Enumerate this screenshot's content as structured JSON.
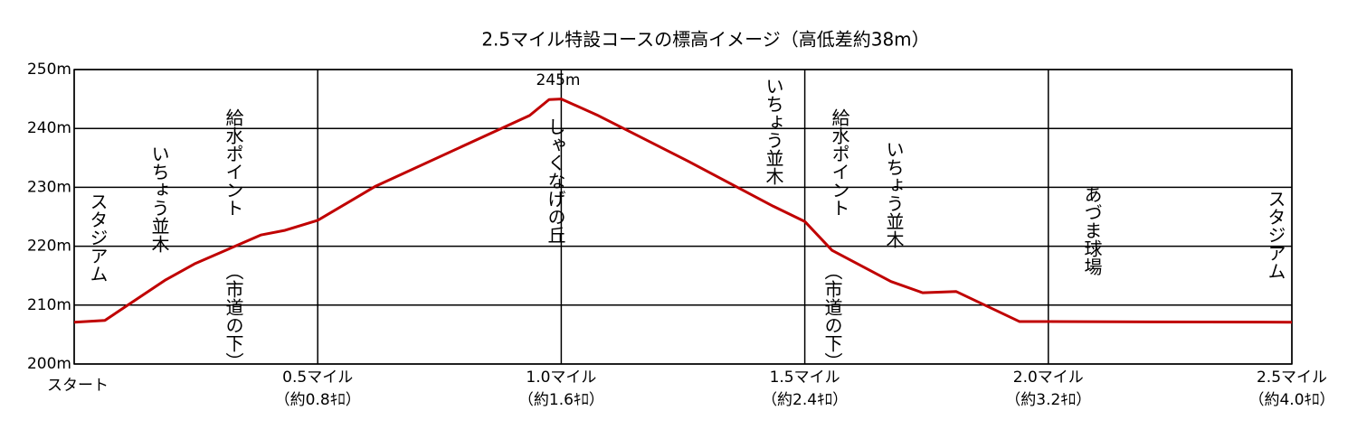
{
  "chart_data": {
    "type": "line",
    "title": "2.5マイル特設コースの標高イメージ（高低差約38m）",
    "x": [
      0,
      0.063,
      0.188,
      0.247,
      0.383,
      0.433,
      0.5,
      0.619,
      0.935,
      0.975,
      1.0,
      1.073,
      1.259,
      1.435,
      1.5,
      1.556,
      1.677,
      1.742,
      1.811,
      1.941,
      2.0,
      2.5
    ],
    "series": [
      {
        "color": "#c00000",
        "values": [
          207.1,
          207.4,
          214.3,
          217.0,
          221.9,
          222.7,
          224.4,
          230.2,
          242.2,
          244.9,
          245,
          242.3,
          234.5,
          226.8,
          224.2,
          219.3,
          214.0,
          212.1,
          212.3,
          207.2,
          207.2,
          207.1
        ]
      }
    ],
    "xlim": [
      0,
      2.5
    ],
    "xticks": [
      {
        "value": 0,
        "label": "スタート"
      },
      {
        "value": 0.5,
        "label": "0.5マイル"
      },
      {
        "value": 1.0,
        "label": "1.0マイル"
      },
      {
        "value": 1.5,
        "label": "1.5マイル"
      },
      {
        "value": 2.0,
        "label": "2.0マイル"
      },
      {
        "value": 2.5,
        "label": "2.5マイル"
      }
    ],
    "xtick_sublabels": [
      null,
      "（約0.8ｷﾛ）",
      "（約1.6ｷﾛ）",
      "（約2.4ｷﾛ）",
      "（約3.2ｷﾛ）",
      "（約4.0ｷﾛ）"
    ],
    "ylim": [
      200,
      250
    ],
    "yticks": [
      {
        "value": 200,
        "label": "200m"
      },
      {
        "value": 210,
        "label": "210m"
      },
      {
        "value": 220,
        "label": "220m"
      },
      {
        "value": 230,
        "label": "230m"
      },
      {
        "value": 240,
        "label": "240m"
      },
      {
        "value": 250,
        "label": "250m"
      }
    ],
    "grid": true,
    "annotations": [
      "スタジアム",
      "いちょう並木",
      "給水ポイント",
      "（市道の下）",
      "245m",
      "しゃくなげの丘",
      "いちょう並木",
      "給水ポイント",
      "（市道の下）",
      "いちょう並木",
      "あづま球場",
      "スタジアム"
    ]
  }
}
